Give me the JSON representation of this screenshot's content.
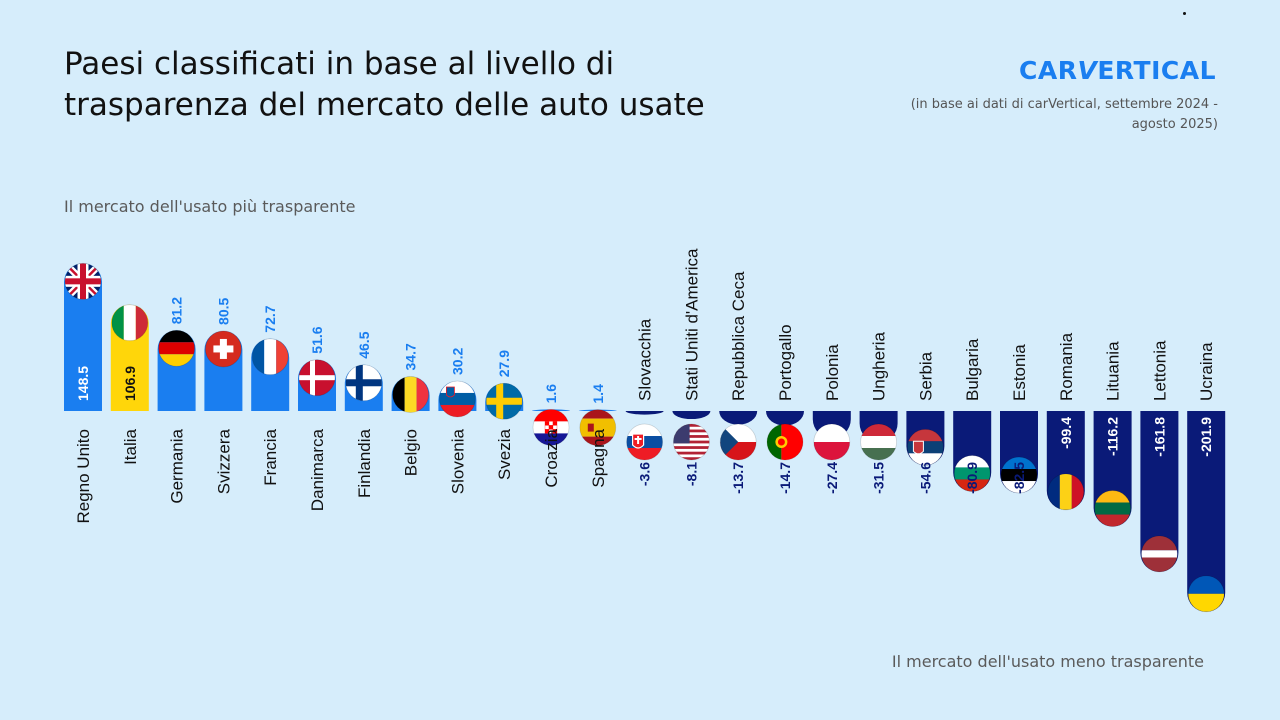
{
  "title": "Paesi classificati in base al livello di trasparenza del mercato delle auto usate",
  "brand": {
    "logo": "CARVERTICAL",
    "source_note": "(in base ai dati di carVertical, settembre 2024 - agosto 2025)"
  },
  "colors": {
    "background": "#d6edfb",
    "positive_bar": "#1a7ef0",
    "italy_bar": "#ffd60a",
    "negative_bar": "#0a1a78",
    "positive_label": "#1a7ef0",
    "negative_label": "#0a1a78",
    "logo": "#1a7ef0"
  },
  "chart_data": {
    "type": "bar",
    "title": "Paesi classificati in base al livello di trasparenza del mercato delle auto usate",
    "top_annotation": "Il mercato dell'usato più trasparente",
    "bottom_annotation": "Il mercato dell'usato meno trasparente",
    "categories": [
      "Regno Unito",
      "Italia",
      "Germania",
      "Svizzera",
      "Francia",
      "Danimarca",
      "Finlandia",
      "Belgio",
      "Slovenia",
      "Svezia",
      "Croazia",
      "Spagna",
      "Slovacchia",
      "Stati Uniti d'America",
      "Repubblica Ceca",
      "Portogallo",
      "Polonia",
      "Ungheria",
      "Serbia",
      "Bulgaria",
      "Estonia",
      "Romania",
      "Lituania",
      "Lettonia",
      "Ucraina"
    ],
    "values": [
      148.5,
      106.9,
      81.2,
      80.5,
      72.7,
      51.6,
      46.5,
      34.7,
      30.2,
      27.9,
      1.6,
      1.4,
      -3.6,
      -8.1,
      -13.7,
      -14.7,
      -27.4,
      -31.5,
      -54.6,
      -80.9,
      -82.5,
      -99.4,
      -116.2,
      -161.8,
      -201.9
    ],
    "value_labels": [
      "148.5",
      "106.9",
      "81.2",
      "80.5",
      "72.7",
      "51.6",
      "46.5",
      "34.7",
      "30.2",
      "27.9",
      "1.6",
      "1.4",
      "-3.6",
      "-8.1",
      "-13.7",
      "-14.7",
      "-27.4",
      "-31.5",
      "-54.6",
      "-80.9",
      "-82.5",
      "-99.4",
      "-116.2",
      "-161.8",
      "-201.9"
    ],
    "flag_icons": [
      "flag-uk-icon",
      "flag-italy-icon",
      "flag-germany-icon",
      "flag-switzerland-icon",
      "flag-france-icon",
      "flag-denmark-icon",
      "flag-finland-icon",
      "flag-belgium-icon",
      "flag-slovenia-icon",
      "flag-sweden-icon",
      "flag-croatia-icon",
      "flag-spain-icon",
      "flag-slovakia-icon",
      "flag-usa-icon",
      "flag-czechia-icon",
      "flag-portugal-icon",
      "flag-poland-icon",
      "flag-hungary-icon",
      "flag-serbia-icon",
      "flag-bulgaria-icon",
      "flag-estonia-icon",
      "flag-romania-icon",
      "flag-lithuania-icon",
      "flag-latvia-icon",
      "flag-ukraine-icon"
    ],
    "ylim": [
      -201.9,
      148.5
    ],
    "grid": false,
    "legend": "none"
  }
}
